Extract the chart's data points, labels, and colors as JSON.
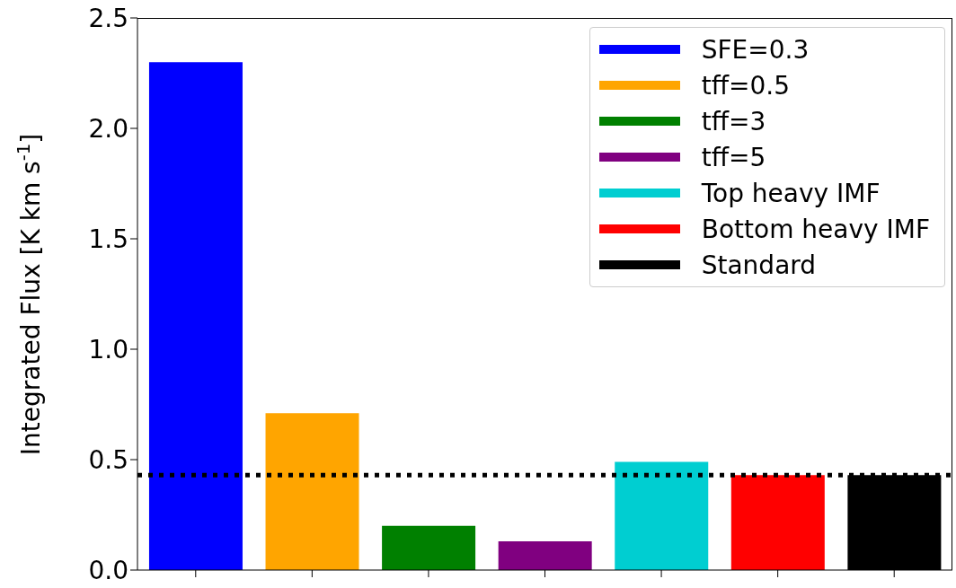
{
  "chart_data": {
    "type": "bar",
    "ylabel": "Integrated Flux [K km s$^{-1}$]",
    "categories": [
      null,
      null,
      null,
      null,
      null,
      null,
      null
    ],
    "series": [
      {
        "name": "SFE=0.3",
        "color": "#0000ff",
        "values": [
          2.3,
          null,
          null,
          null,
          null,
          null,
          null
        ]
      },
      {
        "name": "tff=0.5",
        "color": "#ffa500",
        "values": [
          null,
          0.71,
          null,
          null,
          null,
          null,
          null
        ]
      },
      {
        "name": "tff=3",
        "color": "#008000",
        "values": [
          null,
          null,
          0.2,
          null,
          null,
          null,
          null
        ]
      },
      {
        "name": "tff=5",
        "color": "#800080",
        "values": [
          null,
          null,
          null,
          0.13,
          null,
          null,
          null
        ]
      },
      {
        "name": "Top heavy IMF",
        "color": "#00ced1",
        "values": [
          null,
          null,
          null,
          null,
          0.49,
          null,
          null
        ]
      },
      {
        "name": "Bottom heavy IMF",
        "color": "#ff0000",
        "values": [
          null,
          null,
          null,
          null,
          null,
          0.43,
          null
        ]
      },
      {
        "name": "Standard",
        "color": "#000000",
        "values": [
          null,
          null,
          null,
          null,
          null,
          null,
          0.43
        ]
      }
    ],
    "ylim": [
      0,
      2.5
    ],
    "yticks": [
      {
        "value": 0,
        "label": "0.0"
      },
      {
        "value": 0.5,
        "label": "0.5"
      },
      {
        "value": 1,
        "label": "1.0"
      },
      {
        "value": 1.5,
        "label": "1.5"
      },
      {
        "value": 2,
        "label": "2.0"
      },
      {
        "value": 2.5,
        "label": "2.5"
      }
    ],
    "ref_lines": [
      {
        "axis": "y",
        "value": 0.43,
        "color": "#000000",
        "line_style": "dotted"
      }
    ],
    "tick_labels": "y",
    "legend": "top right",
    "grid": false
  }
}
